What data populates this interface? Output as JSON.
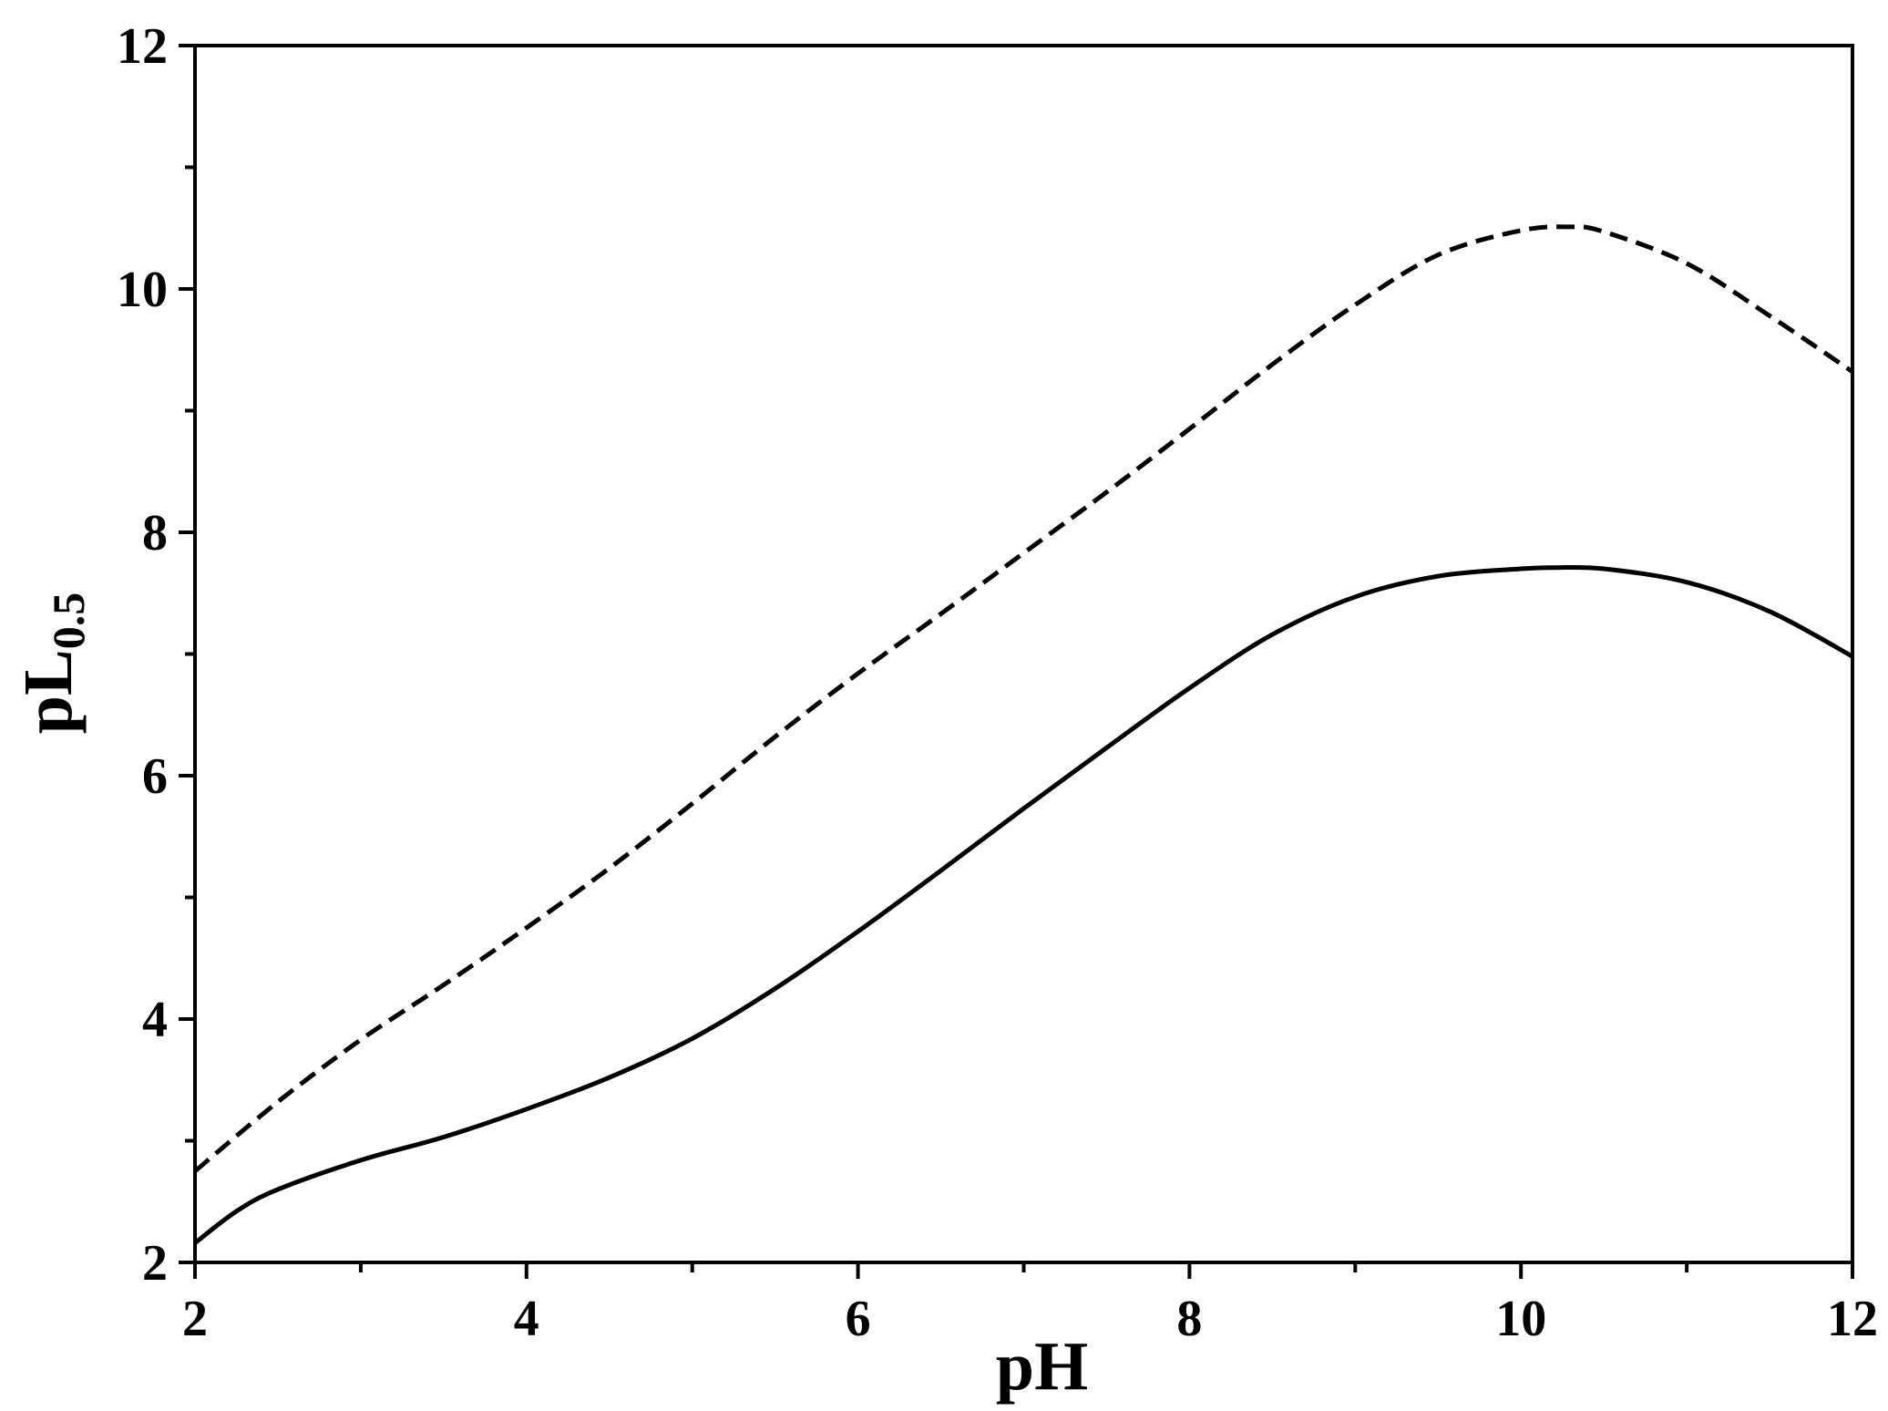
{
  "chart_data": {
    "type": "line",
    "title": "",
    "xlabel": "pH",
    "ylabel": "pL",
    "ylabel_subscript": "0.5",
    "xlim": [
      2,
      12
    ],
    "ylim": [
      2,
      12
    ],
    "x_ticks": [
      2,
      4,
      6,
      8,
      10,
      12
    ],
    "x_tick_labels": [
      "2",
      "4",
      "6",
      "8",
      "10",
      "12"
    ],
    "x_minor_ticks": [
      3,
      5,
      7,
      9,
      11
    ],
    "y_ticks": [
      2,
      4,
      6,
      8,
      10,
      12
    ],
    "y_tick_labels": [
      "2",
      "4",
      "6",
      "8",
      "10",
      "12"
    ],
    "y_minor_ticks": [
      3,
      5,
      7,
      9,
      11
    ],
    "grid": false,
    "legend": "none",
    "series": [
      {
        "style": "dashed",
        "color": "#000000",
        "x": [
          2.0,
          2.5,
          3.0,
          3.5,
          4.0,
          4.5,
          5.0,
          5.5,
          6.0,
          6.5,
          7.0,
          7.5,
          8.0,
          8.5,
          9.0,
          9.5,
          10.0,
          10.3,
          10.5,
          11.0,
          11.5,
          12.0
        ],
        "y": [
          2.75,
          3.32,
          3.83,
          4.28,
          4.75,
          5.24,
          5.77,
          6.32,
          6.84,
          7.33,
          7.83,
          8.33,
          8.85,
          9.38,
          9.87,
          10.28,
          10.48,
          10.51,
          10.47,
          10.21,
          9.78,
          9.32
        ]
      },
      {
        "style": "solid",
        "color": "#000000",
        "x": [
          2.0,
          2.25,
          2.5,
          3.0,
          3.5,
          4.0,
          4.5,
          5.0,
          5.5,
          6.0,
          6.5,
          7.0,
          7.5,
          8.0,
          8.5,
          9.0,
          9.5,
          10.0,
          10.2,
          10.5,
          11.0,
          11.5,
          12.0
        ],
        "y": [
          2.16,
          2.42,
          2.6,
          2.84,
          3.03,
          3.26,
          3.52,
          3.84,
          4.25,
          4.72,
          5.22,
          5.73,
          6.23,
          6.72,
          7.16,
          7.47,
          7.64,
          7.7,
          7.71,
          7.7,
          7.59,
          7.35,
          6.98
        ]
      }
    ]
  }
}
